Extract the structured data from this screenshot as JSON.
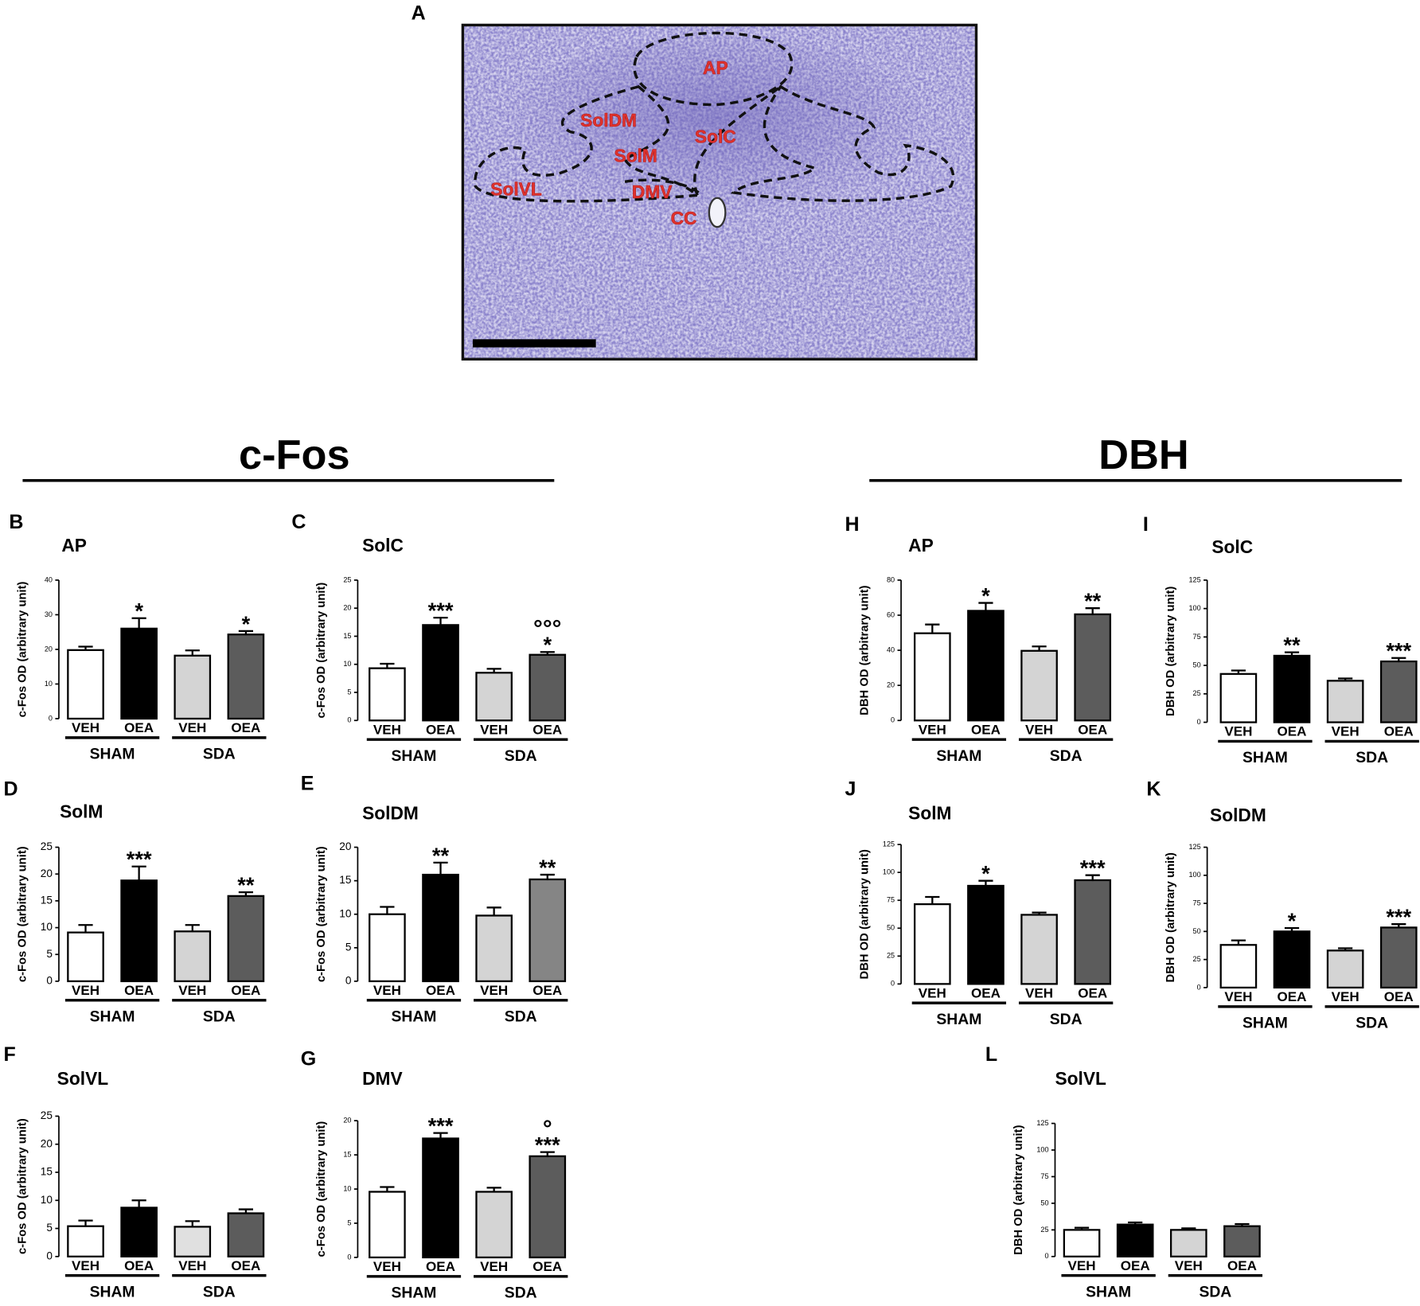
{
  "panel_a": {
    "label": "A",
    "regions": [
      "AP",
      "SolDM",
      "SolC",
      "SolM",
      "SolVL",
      "DMV",
      "CC"
    ]
  },
  "headers": [
    "c-Fos",
    "DBH"
  ],
  "chart_data": [
    {
      "type": "bar",
      "panel": "B",
      "title": "AP",
      "ylabel": "c-Fos OD (arbitrary unit)",
      "categories": [
        "VEH",
        "OEA",
        "VEH",
        "OEA"
      ],
      "groups": [
        "SHAM",
        "SDA"
      ],
      "colors": [
        "#ffffff",
        "#000000",
        "#d4d4d4",
        "#5c5c5c"
      ],
      "values": [
        19.8,
        26,
        18.2,
        24.3
      ],
      "errors": [
        1,
        3,
        1.5,
        1
      ],
      "annotations": [
        [],
        [
          "*"
        ],
        [],
        [
          "*"
        ]
      ],
      "ylim": [
        0,
        40
      ],
      "yticks": [
        0,
        10,
        20,
        30,
        40
      ]
    },
    {
      "type": "bar",
      "panel": "C",
      "title": "SolC",
      "ylabel": "c-Fos OD (arbitrary unit)",
      "categories": [
        "VEH",
        "OEA",
        "VEH",
        "OEA"
      ],
      "groups": [
        "SHAM",
        "SDA"
      ],
      "colors": [
        "#ffffff",
        "#000000",
        "#d4d4d4",
        "#5c5c5c"
      ],
      "values": [
        9.3,
        17,
        8.5,
        11.7
      ],
      "errors": [
        0.8,
        1.3,
        0.7,
        0.5
      ],
      "annotations": [
        [],
        [
          "***"
        ],
        [],
        [
          "°°°",
          "*"
        ]
      ],
      "ylim": [
        0,
        25
      ],
      "yticks": [
        0,
        5,
        10,
        15,
        20,
        25
      ]
    },
    {
      "type": "bar",
      "panel": "D",
      "title": "SolM",
      "ylabel": "c-Fos OD (arbitrary unit)",
      "categories": [
        "VEH",
        "OEA",
        "VEH",
        "OEA"
      ],
      "groups": [
        "SHAM",
        "SDA"
      ],
      "colors": [
        "#ffffff",
        "#000000",
        "#d4d4d4",
        "#5c5c5c"
      ],
      "values": [
        9.1,
        18.8,
        9.3,
        15.9
      ],
      "errors": [
        1.4,
        2.6,
        1.2,
        0.7
      ],
      "annotations": [
        [],
        [
          "***"
        ],
        [],
        [
          "**"
        ]
      ],
      "ylim": [
        0,
        25
      ],
      "yticks": [
        0,
        5,
        10,
        15,
        20,
        25
      ]
    },
    {
      "type": "bar",
      "panel": "E",
      "title": "SolDM",
      "ylabel": "c-Fos OD (arbitrary unit)",
      "categories": [
        "VEH",
        "OEA",
        "VEH",
        "OEA"
      ],
      "groups": [
        "SHAM",
        "SDA"
      ],
      "colors": [
        "#ffffff",
        "#000000",
        "#d4d4d4",
        "#858585"
      ],
      "values": [
        10,
        15.9,
        9.8,
        15.2
      ],
      "errors": [
        1.1,
        1.8,
        1.2,
        0.7
      ],
      "annotations": [
        [],
        [
          "**"
        ],
        [],
        [
          "**"
        ]
      ],
      "ylim": [
        0,
        20
      ],
      "yticks": [
        0,
        5,
        10,
        15,
        20
      ]
    },
    {
      "type": "bar",
      "panel": "F",
      "title": "SolVL",
      "ylabel": "c-Fos OD (arbitrary unit)",
      "categories": [
        "VEH",
        "OEA",
        "VEH",
        "OEA"
      ],
      "groups": [
        "SHAM",
        "SDA"
      ],
      "colors": [
        "#ffffff",
        "#000000",
        "#e0e0e0",
        "#5c5c5c"
      ],
      "values": [
        5.4,
        8.7,
        5.3,
        7.7
      ],
      "errors": [
        1,
        1.3,
        1,
        0.7
      ],
      "annotations": [
        [],
        [],
        [],
        []
      ],
      "ylim": [
        0,
        25
      ],
      "yticks": [
        0,
        5,
        10,
        15,
        20,
        25
      ]
    },
    {
      "type": "bar",
      "panel": "G",
      "title": "DMV",
      "ylabel": "c-Fos OD (arbitrary unit)",
      "categories": [
        "VEH",
        "OEA",
        "VEH",
        "OEA"
      ],
      "groups": [
        "SHAM",
        "SDA"
      ],
      "colors": [
        "#ffffff",
        "#000000",
        "#d4d4d4",
        "#5c5c5c"
      ],
      "values": [
        9.6,
        17.4,
        9.6,
        14.8
      ],
      "errors": [
        0.7,
        0.8,
        0.6,
        0.6
      ],
      "annotations": [
        [],
        [
          "***"
        ],
        [],
        [
          "°",
          "***"
        ]
      ],
      "ylim": [
        0,
        20
      ],
      "yticks": [
        0,
        5,
        10,
        15,
        20
      ]
    },
    {
      "type": "bar",
      "panel": "H",
      "title": "AP",
      "ylabel": "DBH OD (arbitrary unit)",
      "categories": [
        "VEH",
        "OEA",
        "VEH",
        "OEA"
      ],
      "groups": [
        "SHAM",
        "SDA"
      ],
      "colors": [
        "#ffffff",
        "#000000",
        "#d4d4d4",
        "#5c5c5c"
      ],
      "values": [
        49.7,
        62.5,
        39.7,
        60.5
      ],
      "errors": [
        5,
        4.5,
        2.5,
        3.5
      ],
      "annotations": [
        [],
        [
          "*"
        ],
        [],
        [
          "**"
        ]
      ],
      "ylim": [
        0,
        80
      ],
      "yticks": [
        0,
        20,
        40,
        60,
        80
      ]
    },
    {
      "type": "bar",
      "panel": "I",
      "title": "SolC",
      "ylabel": "DBH OD (arbitrary unit)",
      "categories": [
        "VEH",
        "OEA",
        "VEH",
        "OEA"
      ],
      "groups": [
        "SHAM",
        "SDA"
      ],
      "colors": [
        "#ffffff",
        "#000000",
        "#d4d4d4",
        "#5c5c5c"
      ],
      "values": [
        42.5,
        58.5,
        36.5,
        53.5
      ],
      "errors": [
        3,
        3,
        2,
        3
      ],
      "annotations": [
        [],
        [
          "**"
        ],
        [],
        [
          "***"
        ]
      ],
      "ylim": [
        0,
        125
      ],
      "yticks": [
        0,
        25,
        50,
        75,
        100,
        125
      ]
    },
    {
      "type": "bar",
      "panel": "J",
      "title": "SolM",
      "ylabel": "DBH OD (arbitrary unit)",
      "categories": [
        "VEH",
        "OEA",
        "VEH",
        "OEA"
      ],
      "groups": [
        "SHAM",
        "SDA"
      ],
      "colors": [
        "#ffffff",
        "#000000",
        "#d4d4d4",
        "#5c5c5c"
      ],
      "values": [
        71.5,
        88,
        62,
        93
      ],
      "errors": [
        6.5,
        4.5,
        2,
        4.5
      ],
      "annotations": [
        [],
        [
          "*"
        ],
        [],
        [
          "***"
        ]
      ],
      "ylim": [
        0,
        125
      ],
      "yticks": [
        0,
        25,
        50,
        75,
        100,
        125
      ]
    },
    {
      "type": "bar",
      "panel": "K",
      "title": "SolDM",
      "ylabel": "DBH OD (arbitrary unit)",
      "categories": [
        "VEH",
        "OEA",
        "VEH",
        "OEA"
      ],
      "groups": [
        "SHAM",
        "SDA"
      ],
      "colors": [
        "#ffffff",
        "#000000",
        "#d4d4d4",
        "#5c5c5c"
      ],
      "values": [
        38,
        50,
        33,
        53.5
      ],
      "errors": [
        4,
        3,
        2,
        3
      ],
      "annotations": [
        [],
        [
          "*"
        ],
        [],
        [
          "***"
        ]
      ],
      "ylim": [
        0,
        125
      ],
      "yticks": [
        0,
        25,
        50,
        75,
        100,
        125
      ]
    },
    {
      "type": "bar",
      "panel": "L",
      "title": "SolVL",
      "ylabel": "DBH OD (arbitrary unit)",
      "categories": [
        "VEH",
        "OEA",
        "VEH",
        "OEA"
      ],
      "groups": [
        "SHAM",
        "SDA"
      ],
      "colors": [
        "#ffffff",
        "#000000",
        "#d4d4d4",
        "#5c5c5c"
      ],
      "values": [
        25,
        30,
        25,
        28.5
      ],
      "errors": [
        2,
        2,
        1.5,
        2
      ],
      "annotations": [
        [],
        [],
        [],
        []
      ],
      "ylim": [
        0,
        125
      ],
      "yticks": [
        0,
        25,
        50,
        75,
        100,
        125
      ]
    }
  ]
}
